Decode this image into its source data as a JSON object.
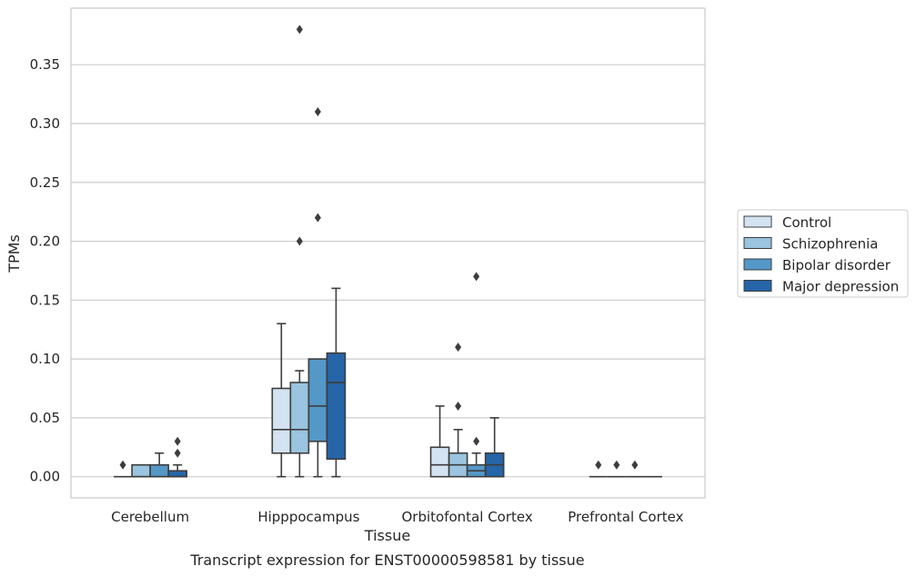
{
  "chart_data": {
    "type": "box",
    "title": "",
    "caption": "Transcript expression for ENST00000598581 by tissue",
    "xlabel": "Tissue",
    "ylabel": "TPMs",
    "ylim": [
      -0.018,
      0.398
    ],
    "yticks": [
      "0.00",
      "0.05",
      "0.10",
      "0.15",
      "0.20",
      "0.25",
      "0.30",
      "0.35"
    ],
    "grid": true,
    "legend_position": "right",
    "categories": [
      "Cerebellum",
      "Hipppocampus",
      "Orbitofontal Cortex",
      "Prefrontal Cortex"
    ],
    "series": [
      {
        "name": "Control",
        "color": "#d4e3f2",
        "boxes": [
          {
            "min": 0,
            "q1": 0,
            "median": 0,
            "q3": 0,
            "max": 0,
            "outliers": [
              0.01
            ]
          },
          {
            "min": 0,
            "q1": 0.02,
            "median": 0.04,
            "q3": 0.075,
            "max": 0.13,
            "outliers": []
          },
          {
            "min": 0,
            "q1": 0,
            "median": 0.01,
            "q3": 0.025,
            "max": 0.06,
            "outliers": []
          },
          {
            "min": 0,
            "q1": 0,
            "median": 0,
            "q3": 0,
            "max": 0,
            "outliers": [
              0.01
            ]
          }
        ]
      },
      {
        "name": "Schizophrenia",
        "color": "#9ac4df",
        "boxes": [
          {
            "min": 0,
            "q1": 0,
            "median": 0,
            "q3": 0.01,
            "max": 0.01,
            "outliers": []
          },
          {
            "min": 0,
            "q1": 0.02,
            "median": 0.04,
            "q3": 0.08,
            "max": 0.09,
            "outliers": [
              0.2,
              0.38
            ]
          },
          {
            "min": 0,
            "q1": 0,
            "median": 0.01,
            "q3": 0.02,
            "max": 0.04,
            "outliers": [
              0.06,
              0.11
            ]
          },
          {
            "min": 0,
            "q1": 0,
            "median": 0,
            "q3": 0,
            "max": 0,
            "outliers": [
              0.01
            ]
          }
        ]
      },
      {
        "name": "Bipolar disorder",
        "color": "#5498c8",
        "boxes": [
          {
            "min": 0,
            "q1": 0,
            "median": 0,
            "q3": 0.01,
            "max": 0.02,
            "outliers": []
          },
          {
            "min": 0,
            "q1": 0.03,
            "median": 0.06,
            "q3": 0.1,
            "max": 0.1,
            "outliers": [
              0.22,
              0.31
            ]
          },
          {
            "min": 0,
            "q1": 0,
            "median": 0.005,
            "q3": 0.01,
            "max": 0.02,
            "outliers": [
              0.03,
              0.17
            ]
          },
          {
            "min": 0,
            "q1": 0,
            "median": 0,
            "q3": 0,
            "max": 0,
            "outliers": [
              0.01
            ]
          }
        ]
      },
      {
        "name": "Major depression",
        "color": "#2565a8",
        "boxes": [
          {
            "min": 0,
            "q1": 0,
            "median": 0,
            "q3": 0.005,
            "max": 0.01,
            "outliers": [
              0.02,
              0.03
            ]
          },
          {
            "min": 0,
            "q1": 0.015,
            "median": 0.08,
            "q3": 0.105,
            "max": 0.16,
            "outliers": []
          },
          {
            "min": 0,
            "q1": 0,
            "median": 0.01,
            "q3": 0.02,
            "max": 0.05,
            "outliers": []
          },
          {
            "min": 0,
            "q1": 0,
            "median": 0,
            "q3": 0,
            "max": 0,
            "outliers": []
          }
        ]
      }
    ]
  }
}
